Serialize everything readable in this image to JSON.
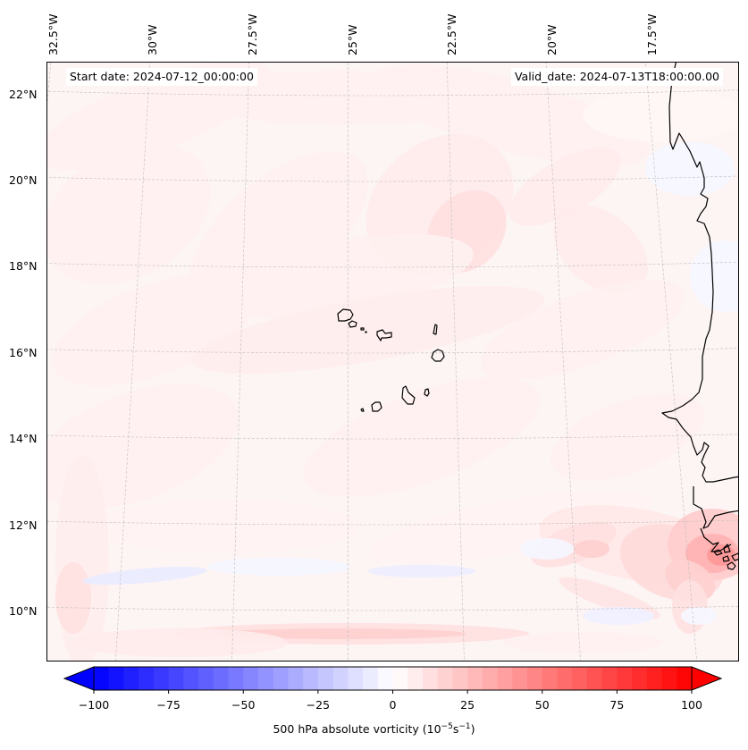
{
  "map": {
    "type": "filled-contour",
    "variable": "500 hPa absolute vorticity",
    "start_annotation": "Start date: 2024-07-12_00:00:00",
    "valid_annotation": "Valid_date: 2024-07-13T18:00:00.00",
    "lon_labels": [
      "32.5°W",
      "30°W",
      "27.5°W",
      "25°W",
      "22.5°W",
      "20°W",
      "17.5°W"
    ],
    "lat_labels": [
      "22°N",
      "20°N",
      "18°N",
      "16°N",
      "14°N",
      "12°N",
      "10°N"
    ],
    "colors": {
      "frame": "#000000",
      "grid": "#bbbbbb",
      "coast": "#000000",
      "min": "#0000ff",
      "mid": "#ffffff",
      "max": "#ff0000"
    }
  },
  "chart_data": {
    "type": "heatmap",
    "title": "",
    "xlabel": "",
    "ylabel": "",
    "x_ticks": [
      "32.5°W",
      "30°W",
      "27.5°W",
      "25°W",
      "22.5°W",
      "20°W",
      "17.5°W"
    ],
    "y_ticks": [
      "22°N",
      "20°N",
      "18°N",
      "16°N",
      "14°N",
      "12°N",
      "10°N"
    ],
    "lon_range": [
      -32.6,
      -15.5
    ],
    "lat_range": [
      8.9,
      22.7
    ],
    "grid": true,
    "colorbar": {
      "label": "500 hPa absolute vorticity (10^-5 s^-1)",
      "min": -100,
      "max": 100,
      "step": 5,
      "extend": "both",
      "ticks": [
        -100,
        -75,
        -50,
        -25,
        0,
        25,
        50,
        75,
        100
      ],
      "tick_labels": [
        "−100",
        "−75",
        "−50",
        "−25",
        "0",
        "25",
        "50",
        "75",
        "100"
      ],
      "colormap": "bwr",
      "placement": "bottom"
    },
    "value_summary": {
      "background_range": [
        0,
        15
      ],
      "max_region": "near 11.5°N 15.7°W (coast of Guinea-Bissau)",
      "max_estimate": 40,
      "min_region": "near 11°N 32°W",
      "min_estimate": -10
    }
  }
}
